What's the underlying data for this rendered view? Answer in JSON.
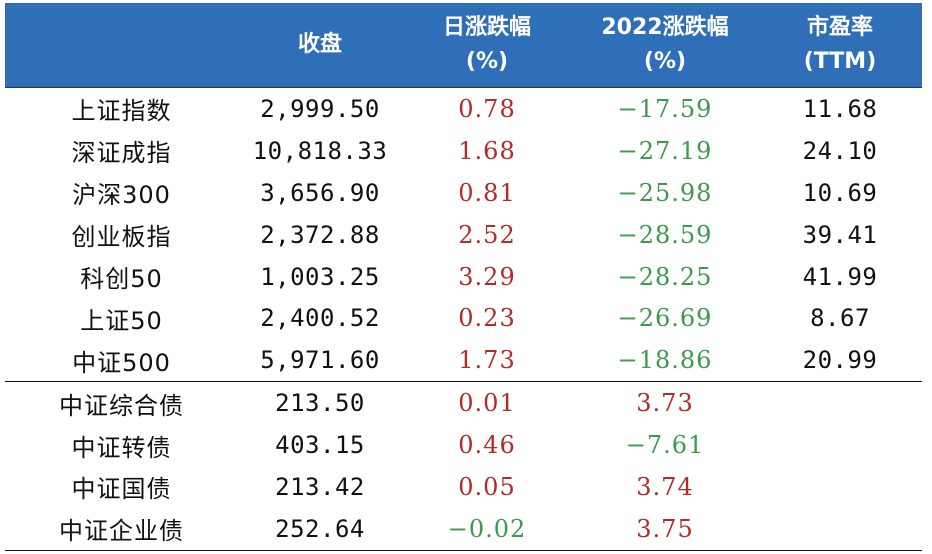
{
  "header": {
    "name": "",
    "close": "收盘",
    "day_change_l1": "日涨跌幅",
    "day_change_l2": "(%)",
    "ytd_change_l1": "2022涨跌幅",
    "ytd_change_l2": "(%)",
    "pe_l1": "市盈率",
    "pe_l2": "(TTM)"
  },
  "colors": {
    "header_bg": "#2f6fb8",
    "up": "#b32a2a",
    "down": "#3c9a4c"
  },
  "rows": [
    {
      "name": "上证指数",
      "close": "2,999.50",
      "day": "0.78",
      "ytd": "−17.59",
      "pe": "11.68"
    },
    {
      "name": "深证成指",
      "close": "10,818.33",
      "day": "1.68",
      "ytd": "−27.19",
      "pe": "24.10"
    },
    {
      "name": "沪深300",
      "close": "3,656.90",
      "day": "0.81",
      "ytd": "−25.98",
      "pe": "10.69"
    },
    {
      "name": "创业板指",
      "close": "2,372.88",
      "day": "2.52",
      "ytd": "−28.59",
      "pe": "39.41"
    },
    {
      "name": "科创50",
      "close": "1,003.25",
      "day": "3.29",
      "ytd": "−28.25",
      "pe": "41.99"
    },
    {
      "name": "上证50",
      "close": "2,400.52",
      "day": "0.23",
      "ytd": "−26.69",
      "pe": "8.67"
    },
    {
      "name": "中证500",
      "close": "5,971.60",
      "day": "1.73",
      "ytd": "−18.86",
      "pe": "20.99"
    },
    {
      "name": "中证综合债",
      "close": "213.50",
      "day": "0.01",
      "ytd": "3.73",
      "pe": ""
    },
    {
      "name": "中证转债",
      "close": "403.15",
      "day": "0.46",
      "ytd": "−7.61",
      "pe": ""
    },
    {
      "name": "中证国债",
      "close": "213.42",
      "day": "0.05",
      "ytd": "3.74",
      "pe": ""
    },
    {
      "name": "中证企业债",
      "close": "252.64",
      "day": "−0.02",
      "ytd": "3.75",
      "pe": ""
    }
  ]
}
